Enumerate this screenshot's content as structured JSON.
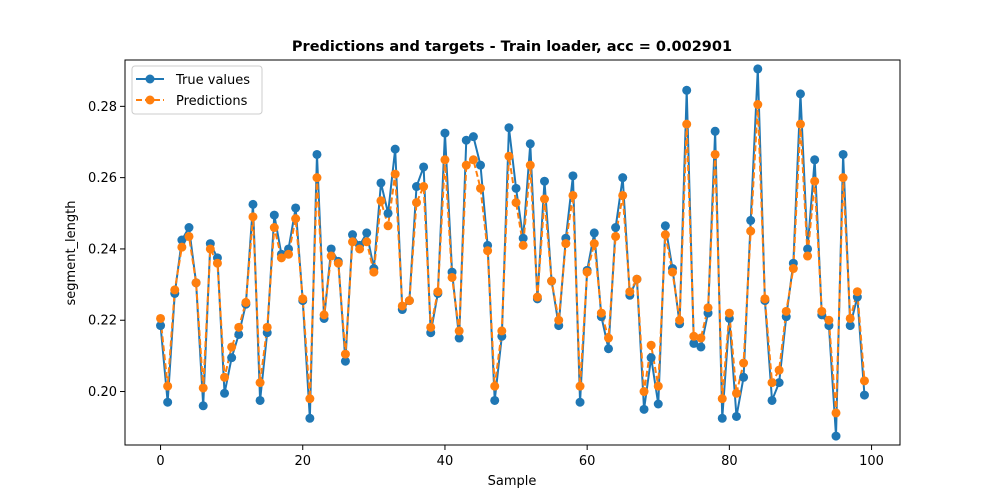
{
  "chart_data": {
    "type": "line",
    "title": "Predictions and targets - Train loader, acc = 0.002901",
    "xlabel": "Sample",
    "ylabel": "segment_length",
    "xlim": [
      -5,
      104
    ],
    "ylim": [
      0.185,
      0.293
    ],
    "xticks": [
      0,
      20,
      40,
      60,
      80,
      100
    ],
    "xtick_labels": [
      "0",
      "20",
      "40",
      "60",
      "80",
      "100"
    ],
    "yticks": [
      0.2,
      0.22,
      0.24,
      0.26,
      0.28
    ],
    "ytick_labels": [
      "0.20",
      "0.22",
      "0.24",
      "0.26",
      "0.28"
    ],
    "grid": false,
    "legend_position": "top-left",
    "x": [
      0,
      1,
      2,
      3,
      4,
      5,
      6,
      7,
      8,
      9,
      10,
      11,
      12,
      13,
      14,
      15,
      16,
      17,
      18,
      19,
      20,
      21,
      22,
      23,
      24,
      25,
      26,
      27,
      28,
      29,
      30,
      31,
      32,
      33,
      34,
      35,
      36,
      37,
      38,
      39,
      40,
      41,
      42,
      43,
      44,
      45,
      46,
      47,
      48,
      49,
      50,
      51,
      52,
      53,
      54,
      55,
      56,
      57,
      58,
      59,
      60,
      61,
      62,
      63,
      64,
      65,
      66,
      67,
      68,
      69,
      70,
      71,
      72,
      73,
      74,
      75,
      76,
      77,
      78,
      79,
      80,
      81,
      82,
      83,
      84,
      85,
      86,
      87,
      88,
      89,
      90,
      91,
      92,
      93,
      94,
      95,
      96,
      97,
      98,
      99
    ],
    "series": [
      {
        "name": "True values",
        "color": "#1f77b4",
        "linestyle": "solid",
        "values": [
          0.2185,
          0.197,
          0.2275,
          0.2425,
          0.246,
          0.2305,
          0.196,
          0.2415,
          0.2375,
          0.1995,
          0.2095,
          0.216,
          0.2245,
          0.2525,
          0.1975,
          0.2165,
          0.2495,
          0.2385,
          0.24,
          0.2515,
          0.2255,
          0.1925,
          0.2665,
          0.2205,
          0.24,
          0.2365,
          0.2085,
          0.244,
          0.241,
          0.2445,
          0.2345,
          0.2585,
          0.25,
          0.268,
          0.223,
          0.2255,
          0.2575,
          0.263,
          0.2165,
          0.2275,
          0.2725,
          0.2335,
          0.215,
          0.2705,
          0.2715,
          0.2635,
          0.241,
          0.1975,
          0.2155,
          0.274,
          0.257,
          0.243,
          0.2695,
          0.226,
          0.259,
          0.231,
          0.2185,
          0.243,
          0.2605,
          0.197,
          0.234,
          0.2445,
          0.221,
          0.212,
          0.246,
          0.26,
          0.227,
          0.2315,
          0.195,
          0.2095,
          0.1965,
          0.2465,
          0.2345,
          0.219,
          0.2845,
          0.2135,
          0.2125,
          0.222,
          0.273,
          0.1925,
          0.2205,
          0.193,
          0.204,
          0.248,
          0.2905,
          0.2255,
          0.1975,
          0.2025,
          0.221,
          0.236,
          0.2835,
          0.24,
          0.265,
          0.2215,
          0.2185,
          0.1875,
          0.2665,
          0.2185,
          0.2265,
          0.199
        ]
      },
      {
        "name": "Predictions",
        "color": "#ff7f0e",
        "linestyle": "dashed",
        "values": [
          0.2205,
          0.2015,
          0.2285,
          0.2405,
          0.2435,
          0.2305,
          0.201,
          0.24,
          0.236,
          0.204,
          0.2125,
          0.218,
          0.225,
          0.249,
          0.2025,
          0.218,
          0.246,
          0.2375,
          0.2385,
          0.2485,
          0.226,
          0.198,
          0.26,
          0.2215,
          0.238,
          0.236,
          0.2105,
          0.242,
          0.24,
          0.242,
          0.2335,
          0.2535,
          0.2465,
          0.261,
          0.224,
          0.2255,
          0.253,
          0.2575,
          0.218,
          0.228,
          0.265,
          0.232,
          0.217,
          0.2635,
          0.265,
          0.257,
          0.2395,
          0.2015,
          0.217,
          0.266,
          0.253,
          0.241,
          0.2635,
          0.2265,
          0.254,
          0.231,
          0.22,
          0.2415,
          0.255,
          0.2015,
          0.2335,
          0.2415,
          0.222,
          0.215,
          0.2435,
          0.255,
          0.228,
          0.2315,
          0.2,
          0.213,
          0.2015,
          0.244,
          0.2335,
          0.22,
          0.275,
          0.2155,
          0.215,
          0.2235,
          0.2665,
          0.198,
          0.222,
          0.1995,
          0.208,
          0.245,
          0.2805,
          0.226,
          0.2025,
          0.206,
          0.2225,
          0.2345,
          0.275,
          0.238,
          0.259,
          0.2225,
          0.22,
          0.194,
          0.26,
          0.2205,
          0.228,
          0.203
        ]
      }
    ]
  }
}
